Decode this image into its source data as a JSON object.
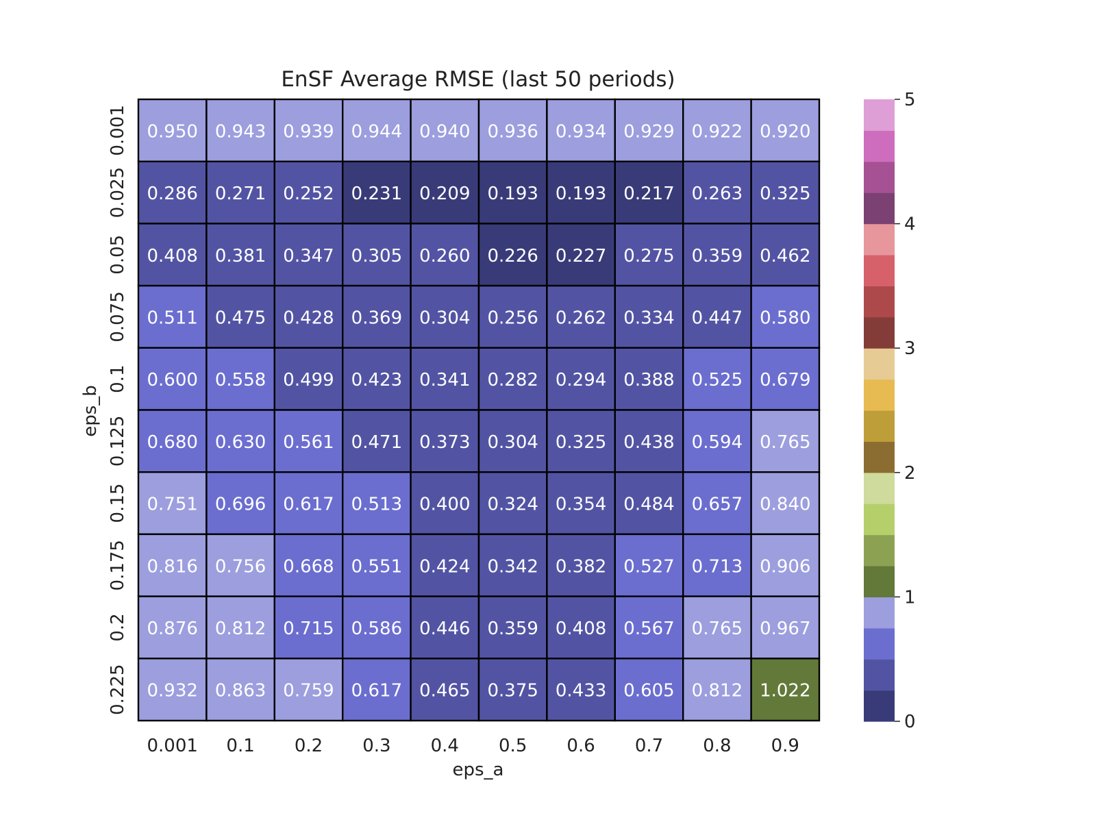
{
  "chart_data": {
    "type": "heatmap",
    "title": "EnSF Average RMSE (last 50 periods)",
    "xlabel": "eps_a",
    "ylabel": "eps_b",
    "x": [
      "0.001",
      "0.1",
      "0.2",
      "0.3",
      "0.4",
      "0.5",
      "0.6",
      "0.7",
      "0.8",
      "0.9"
    ],
    "y": [
      "0.001",
      "0.025",
      "0.05",
      "0.075",
      "0.1",
      "0.125",
      "0.15",
      "0.175",
      "0.2",
      "0.225"
    ],
    "values": [
      [
        0.95,
        0.943,
        0.939,
        0.944,
        0.94,
        0.936,
        0.934,
        0.929,
        0.922,
        0.92
      ],
      [
        0.286,
        0.271,
        0.252,
        0.231,
        0.209,
        0.193,
        0.193,
        0.217,
        0.263,
        0.325
      ],
      [
        0.408,
        0.381,
        0.347,
        0.305,
        0.26,
        0.226,
        0.227,
        0.275,
        0.359,
        0.462
      ],
      [
        0.511,
        0.475,
        0.428,
        0.369,
        0.304,
        0.256,
        0.262,
        0.334,
        0.447,
        0.58
      ],
      [
        0.6,
        0.558,
        0.499,
        0.423,
        0.341,
        0.282,
        0.294,
        0.388,
        0.525,
        0.679
      ],
      [
        0.68,
        0.63,
        0.561,
        0.471,
        0.373,
        0.304,
        0.325,
        0.438,
        0.594,
        0.765
      ],
      [
        0.751,
        0.696,
        0.617,
        0.513,
        0.4,
        0.324,
        0.354,
        0.484,
        0.657,
        0.84
      ],
      [
        0.816,
        0.756,
        0.668,
        0.551,
        0.424,
        0.342,
        0.382,
        0.527,
        0.713,
        0.906
      ],
      [
        0.876,
        0.812,
        0.715,
        0.586,
        0.446,
        0.359,
        0.408,
        0.567,
        0.765,
        0.967
      ],
      [
        0.932,
        0.863,
        0.759,
        0.617,
        0.465,
        0.375,
        0.433,
        0.605,
        0.812,
        1.022
      ]
    ],
    "colorbar": {
      "range": [
        0,
        5
      ],
      "ticks": [
        "0",
        "1",
        "2",
        "3",
        "4",
        "5"
      ],
      "colors": [
        "#393b79",
        "#5254a3",
        "#6b6ecf",
        "#9c9ede",
        "#637939",
        "#8ca252",
        "#b5cf6b",
        "#cedb9c",
        "#8c6d31",
        "#bd9e39",
        "#e7ba52",
        "#e7cb94",
        "#843c39",
        "#ad494a",
        "#d6616b",
        "#e7969c",
        "#7b4173",
        "#a55194",
        "#ce6dbd",
        "#de9ed6"
      ]
    },
    "grid": false,
    "cell_text_color": "#ffffff"
  }
}
